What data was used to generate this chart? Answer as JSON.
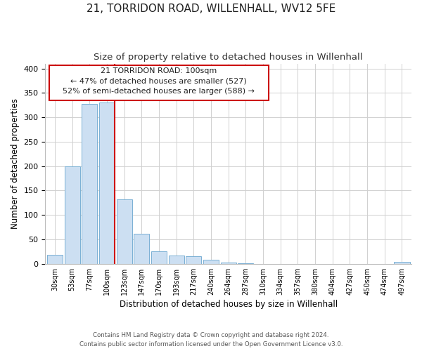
{
  "title": "21, TORRIDON ROAD, WILLENHALL, WV12 5FE",
  "subtitle": "Size of property relative to detached houses in Willenhall",
  "xlabel": "Distribution of detached houses by size in Willenhall",
  "ylabel": "Number of detached properties",
  "bar_labels": [
    "30sqm",
    "53sqm",
    "77sqm",
    "100sqm",
    "123sqm",
    "147sqm",
    "170sqm",
    "193sqm",
    "217sqm",
    "240sqm",
    "264sqm",
    "287sqm",
    "310sqm",
    "334sqm",
    "357sqm",
    "380sqm",
    "404sqm",
    "427sqm",
    "450sqm",
    "474sqm",
    "497sqm"
  ],
  "bar_values": [
    19,
    200,
    327,
    330,
    132,
    62,
    25,
    17,
    16,
    8,
    2,
    1,
    0,
    0,
    0,
    0,
    0,
    0,
    0,
    0,
    4
  ],
  "bar_color": "#ccdff2",
  "bar_edge_color": "#7ab0d4",
  "vline_color": "#cc0000",
  "vline_bar_index": 3,
  "ylim": [
    0,
    410
  ],
  "yticks": [
    0,
    50,
    100,
    150,
    200,
    250,
    300,
    350,
    400
  ],
  "ann_line1": "21 TORRIDON ROAD: 100sqm",
  "ann_line2": "← 47% of detached houses are smaller (527)",
  "ann_line3": "52% of semi-detached houses are larger (588) →",
  "footer_line1": "Contains HM Land Registry data © Crown copyright and database right 2024.",
  "footer_line2": "Contains public sector information licensed under the Open Government Licence v3.0.",
  "background_color": "#ffffff",
  "grid_color": "#d0d0d0",
  "title_fontsize": 11,
  "subtitle_fontsize": 9.5,
  "axis_label_fontsize": 8.5,
  "tick_fontsize": 8,
  "xtick_fontsize": 7
}
